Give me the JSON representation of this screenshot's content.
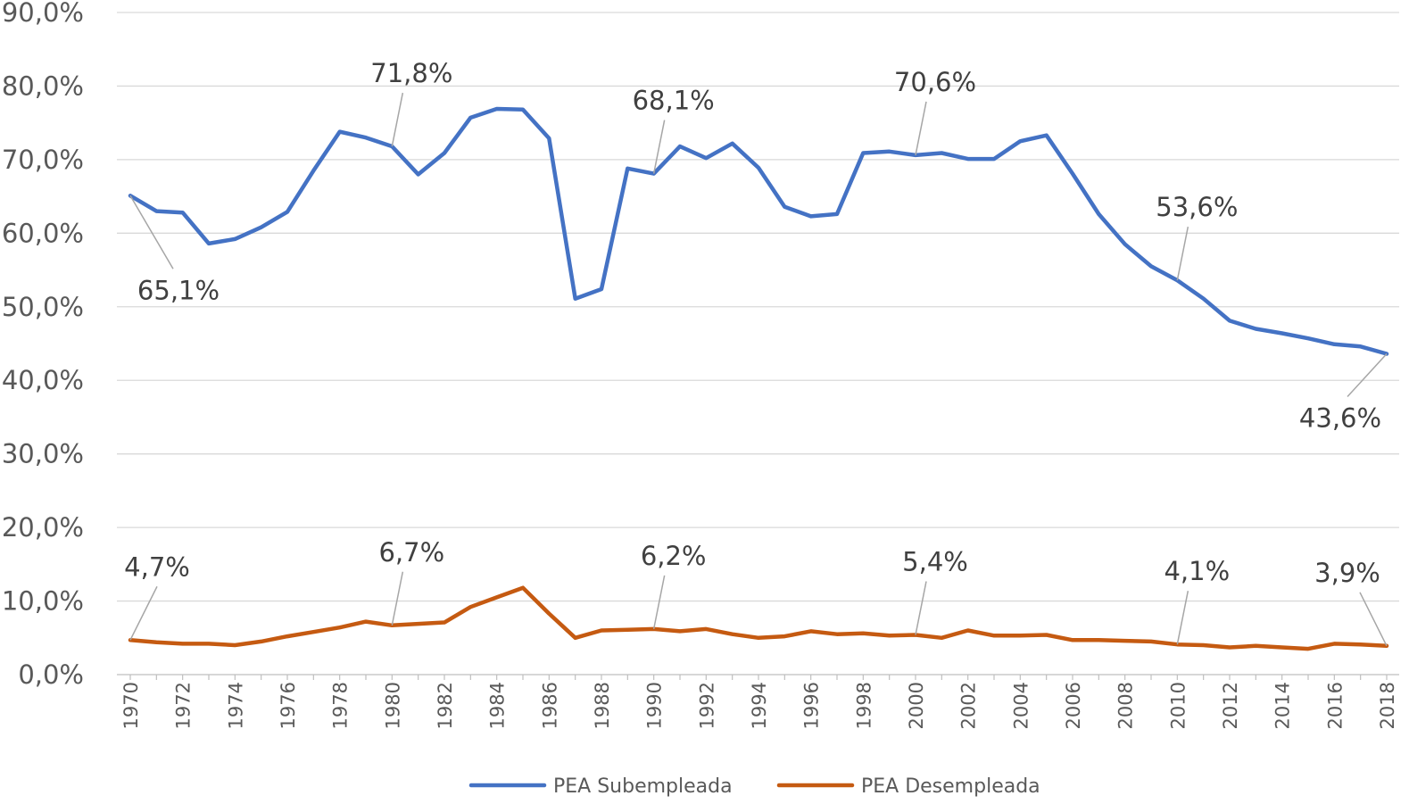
{
  "chart_data": {
    "type": "line",
    "title": "",
    "xlabel": "",
    "ylabel": "",
    "ylim": [
      0,
      90
    ],
    "y_tick_labels": [
      "0,0%",
      "10,0%",
      "20,0%",
      "30,0%",
      "40,0%",
      "50,0%",
      "60,0%",
      "70,0%",
      "80,0%",
      "90,0%"
    ],
    "x_tick_labels": [
      "1970",
      "1972",
      "1974",
      "1976",
      "1978",
      "1980",
      "1982",
      "1984",
      "1986",
      "1988",
      "1990",
      "1992",
      "1994",
      "1996",
      "1998",
      "2000",
      "2002",
      "2004",
      "2006",
      "2008",
      "2010",
      "2012",
      "2014",
      "2016",
      "2018"
    ],
    "x": [
      1970,
      1971,
      1972,
      1973,
      1974,
      1975,
      1976,
      1977,
      1978,
      1979,
      1980,
      1981,
      1982,
      1983,
      1984,
      1985,
      1986,
      1987,
      1988,
      1989,
      1990,
      1991,
      1992,
      1993,
      1994,
      1995,
      1996,
      1997,
      1998,
      1999,
      2000,
      2001,
      2002,
      2003,
      2004,
      2005,
      2006,
      2007,
      2008,
      2009,
      2010,
      2011,
      2012,
      2013,
      2014,
      2015,
      2016,
      2017,
      2018
    ],
    "grid": true,
    "legend_position": "bottom",
    "series": [
      {
        "name": "PEA Subempleada",
        "color": "#4472C4",
        "values": [
          65.1,
          63.0,
          62.8,
          58.6,
          59.2,
          60.8,
          62.9,
          68.5,
          73.8,
          73.0,
          71.8,
          68.0,
          70.9,
          75.7,
          76.9,
          76.8,
          72.9,
          51.1,
          52.4,
          68.8,
          68.1,
          71.8,
          70.2,
          72.2,
          68.9,
          63.6,
          62.3,
          62.6,
          70.9,
          71.1,
          70.6,
          70.9,
          70.1,
          70.1,
          72.5,
          73.3,
          68.1,
          62.6,
          58.5,
          55.5,
          53.6,
          51.1,
          48.1,
          47.0,
          46.4,
          45.7,
          44.9,
          44.6,
          43.6
        ]
      },
      {
        "name": "PEA Desempleada",
        "color": "#C55A11",
        "values": [
          4.7,
          4.4,
          4.2,
          4.2,
          4.0,
          4.5,
          5.2,
          5.8,
          6.4,
          7.2,
          6.7,
          6.9,
          7.1,
          9.2,
          10.5,
          11.8,
          8.3,
          5.0,
          6.0,
          6.1,
          6.2,
          5.9,
          6.2,
          5.5,
          5.0,
          5.2,
          5.9,
          5.5,
          5.6,
          5.3,
          5.4,
          5.0,
          6.0,
          5.3,
          5.3,
          5.4,
          4.7,
          4.7,
          4.6,
          4.5,
          4.1,
          4.0,
          3.7,
          3.9,
          3.7,
          3.5,
          4.2,
          4.1,
          3.9
        ]
      }
    ],
    "annotations": [
      {
        "series": 0,
        "year": 1970,
        "text": "65,1%",
        "pos": "below"
      },
      {
        "series": 0,
        "year": 1980,
        "text": "71,8%",
        "pos": "above"
      },
      {
        "series": 0,
        "year": 1990,
        "text": "68,1%",
        "pos": "above"
      },
      {
        "series": 0,
        "year": 2000,
        "text": "70,6%",
        "pos": "above"
      },
      {
        "series": 0,
        "year": 2010,
        "text": "53,6%",
        "pos": "above"
      },
      {
        "series": 0,
        "year": 2018,
        "text": "43,6%",
        "pos": "below"
      },
      {
        "series": 1,
        "year": 1970,
        "text": "4,7%",
        "pos": "above"
      },
      {
        "series": 1,
        "year": 1980,
        "text": "6,7%",
        "pos": "above"
      },
      {
        "series": 1,
        "year": 1990,
        "text": "6,2%",
        "pos": "above"
      },
      {
        "series": 1,
        "year": 2000,
        "text": "5,4%",
        "pos": "above"
      },
      {
        "series": 1,
        "year": 2010,
        "text": "4,1%",
        "pos": "above"
      },
      {
        "series": 1,
        "year": 2018,
        "text": "3,9%",
        "pos": "above"
      }
    ]
  }
}
